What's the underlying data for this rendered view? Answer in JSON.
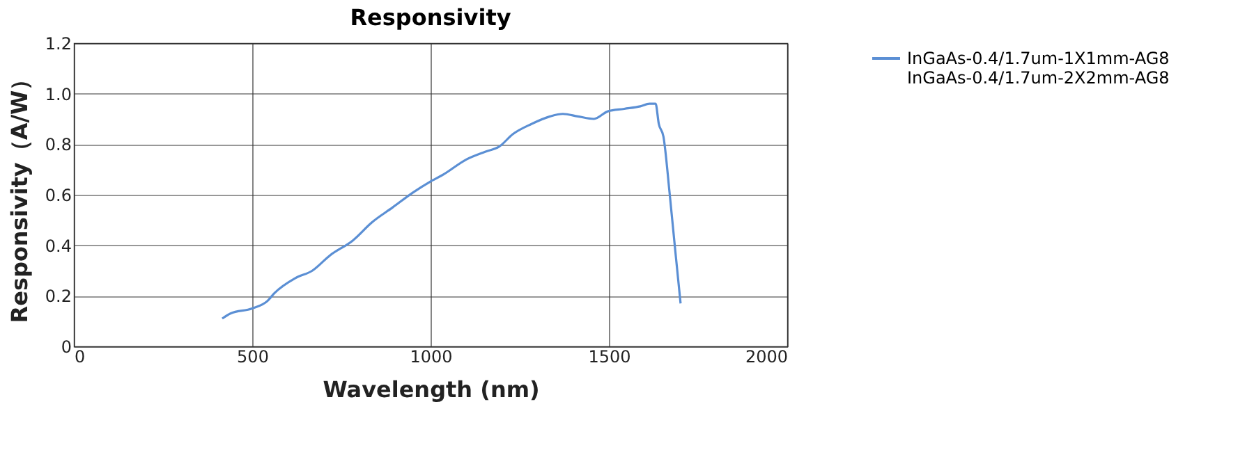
{
  "chart_data": {
    "type": "line",
    "title": "Responsivity",
    "xlabel": "Wavelength (nm)",
    "ylabel": "Responsivity（A/W）",
    "xlim": [
      0,
      2000
    ],
    "xticks": [
      0,
      500,
      1000,
      1500,
      2000
    ],
    "ylim": [
      0,
      1.2
    ],
    "yticks": [
      0,
      0.2,
      0.4,
      0.6,
      0.8,
      {
        "value": 1,
        "label": "1.0"
      },
      1.2
    ],
    "grid": true,
    "legend": "right",
    "line_style": "solid",
    "series": [
      {
        "name": "InGaAs-0.4/1.7um-1X1mm-AG8\nInGaAs-0.4/1.7um-2X2mm-AG8",
        "color": "#5b8fd4",
        "x": [
          416,
          439,
          500,
          543,
          562,
          621,
          669,
          718,
          783,
          835,
          894,
          952,
          997,
          1036,
          1101,
          1153,
          1192,
          1231,
          1283,
          1335,
          1371,
          1413,
          1458,
          1497,
          1543,
          1588,
          1614,
          1631,
          1640,
          1653,
          1670,
          1686,
          1701
        ],
        "values": [
          0.11,
          0.13,
          0.15,
          0.18,
          0.21,
          0.27,
          0.3,
          0.36,
          0.42,
          0.49,
          0.55,
          0.61,
          0.65,
          0.68,
          0.74,
          0.77,
          0.79,
          0.84,
          0.88,
          0.91,
          0.92,
          0.91,
          0.9,
          0.93,
          0.94,
          0.95,
          0.96,
          0.96,
          0.88,
          0.83,
          0.61,
          0.38,
          0.17
        ]
      }
    ]
  }
}
